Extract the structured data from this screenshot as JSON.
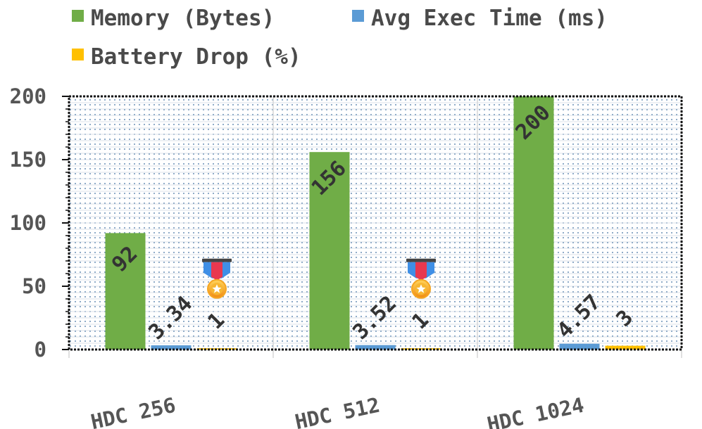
{
  "chart_data": {
    "type": "bar",
    "categories": [
      "HDC 256",
      "HDC 512",
      "HDC 1024"
    ],
    "series": [
      {
        "name": "Memory (Bytes)",
        "values": [
          92,
          156,
          200
        ],
        "color": "#70ad47",
        "labels": [
          "92",
          "156",
          "200"
        ]
      },
      {
        "name": "Avg Exec Time (ms)",
        "values": [
          3.34,
          3.52,
          4.57
        ],
        "color": "#5b9bd5",
        "labels": [
          "3.34",
          "3.52",
          "4.57"
        ]
      },
      {
        "name": "Battery Drop (%)",
        "values": [
          1,
          1,
          3
        ],
        "color": "#ffc000",
        "labels": [
          "1",
          "1",
          "3"
        ]
      }
    ],
    "ylim": [
      0,
      200
    ],
    "yticks": [
      0,
      50,
      100,
      150,
      200
    ],
    "xlabel": "",
    "ylabel": "",
    "title": "",
    "grid": true,
    "legend_position": "top",
    "annotations": [
      {
        "category": "HDC 256",
        "icon": "medal-icon"
      },
      {
        "category": "HDC 512",
        "icon": "medal-icon"
      }
    ]
  }
}
